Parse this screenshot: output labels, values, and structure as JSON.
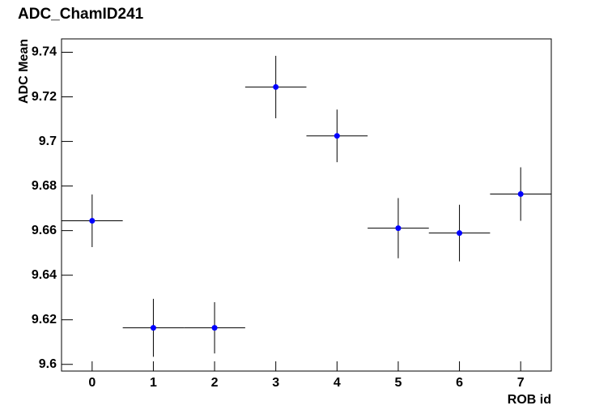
{
  "chart_data": {
    "type": "errorbar",
    "title": "ADC_ChamID241",
    "x_label": "ROB id",
    "y_label": "ADC Mean",
    "series": [
      {
        "color": "#0000ff",
        "x": [
          0,
          1,
          2,
          3,
          4,
          5,
          6,
          7
        ],
        "values": [
          9.6644,
          9.6164,
          9.6164,
          9.7244,
          9.7025,
          9.6611,
          9.6589,
          9.6764
        ],
        "xerr": [
          0.5,
          0.5,
          0.5,
          0.5,
          0.5,
          0.5,
          0.5,
          0.5
        ],
        "yerr": [
          0.0118,
          0.013,
          0.0115,
          0.014,
          0.0118,
          0.0135,
          0.0127,
          0.012
        ]
      }
    ],
    "xlim": [
      -0.5,
      7.5
    ],
    "xticks": [
      0,
      1,
      2,
      3,
      4,
      5,
      6,
      7
    ],
    "ylim": [
      9.597,
      9.746
    ],
    "yticks": [
      9.6,
      9.62,
      9.64,
      9.66,
      9.68,
      9.7,
      9.72,
      9.74
    ],
    "grid": false
  }
}
